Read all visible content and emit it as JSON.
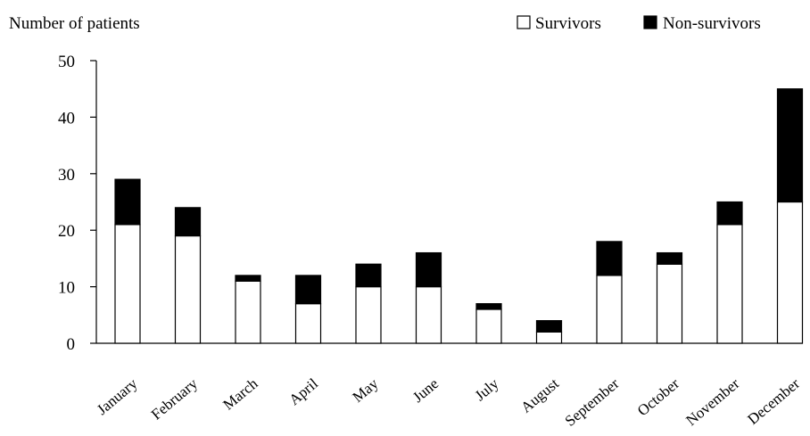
{
  "chart_data": {
    "type": "bar",
    "stacked": true,
    "ylabel": "Number of patients",
    "xlabel": "",
    "ylim": [
      0,
      50
    ],
    "yticks": [
      0,
      10,
      20,
      30,
      40,
      50
    ],
    "grid": false,
    "legend_position": "top-right",
    "categories": [
      "January",
      "February",
      "March",
      "April",
      "May",
      "June",
      "July",
      "August",
      "September",
      "October",
      "November",
      "December"
    ],
    "series": [
      {
        "name": "Survivors",
        "color": "#ffffff",
        "values": [
          21,
          19,
          11,
          7,
          10,
          10,
          6,
          2,
          12,
          14,
          21,
          25
        ]
      },
      {
        "name": "Non-survivors",
        "color": "#000000",
        "values": [
          8,
          5,
          1,
          5,
          4,
          6,
          1,
          2,
          6,
          2,
          4,
          20
        ]
      }
    ]
  }
}
